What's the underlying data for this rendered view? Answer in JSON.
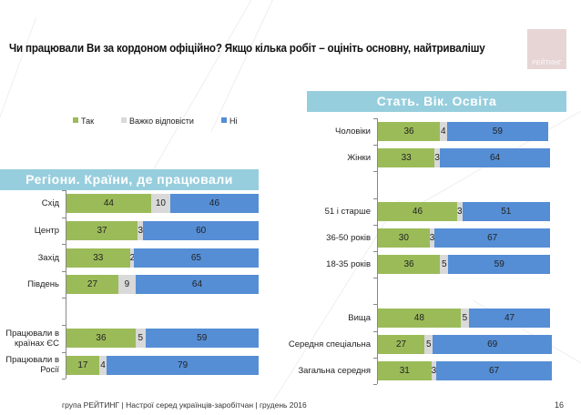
{
  "title": "Чи працювали Ви за кордоном офіційно? Якщо кілька робіт – оцініть основну, найтривалішу",
  "logo_text": "РЕЙТИНГ",
  "colors": {
    "yes": "#9bbb59",
    "hard": "#d9d9d9",
    "no": "#558ed5",
    "banner": "#97cedd"
  },
  "legend": [
    {
      "label": "Так",
      "key": "yes"
    },
    {
      "label": "Важко відповісти",
      "key": "hard"
    },
    {
      "label": "Ні",
      "key": "no"
    }
  ],
  "footer": "група РЕЙТИНГ |  Настрої серед українців-заробітчан  |  грудень 2016",
  "page_number": "16",
  "chart_data": [
    {
      "type": "bar",
      "orientation": "horizontal-stacked-100",
      "title": "Регіони. Країни, де працювали",
      "series_names": [
        "Так",
        "Важко відповісти",
        "Ні"
      ],
      "categories": [
        "Схід",
        "Центр",
        "Захід",
        "Південь",
        "",
        "Працювали в країнах ЄС",
        "Працювали в Росії"
      ],
      "series": [
        {
          "name": "Так",
          "values": [
            44,
            37,
            33,
            27,
            null,
            36,
            17
          ]
        },
        {
          "name": "Важко відповісти",
          "values": [
            10,
            3,
            2,
            9,
            null,
            5,
            4
          ]
        },
        {
          "name": "Ні",
          "values": [
            46,
            60,
            65,
            64,
            null,
            59,
            79
          ]
        }
      ],
      "xlim": [
        0,
        100
      ],
      "legend": "top"
    },
    {
      "type": "bar",
      "orientation": "horizontal-stacked-100",
      "title": "Стать. Вік. Освіта",
      "series_names": [
        "Так",
        "Важко відповісти",
        "Ні"
      ],
      "categories": [
        "Чоловіки",
        "Жінки",
        "",
        "51 і старше",
        "36-50 років",
        "18-35 років",
        "",
        "Вища",
        "Середня спеціальна",
        "Загальна середня"
      ],
      "series": [
        {
          "name": "Так",
          "values": [
            36,
            33,
            null,
            46,
            30,
            36,
            null,
            48,
            27,
            31
          ]
        },
        {
          "name": "Важко відповісти",
          "values": [
            4,
            3,
            null,
            3,
            3,
            5,
            null,
            5,
            5,
            3
          ]
        },
        {
          "name": "Ні",
          "values": [
            59,
            64,
            null,
            51,
            67,
            59,
            null,
            47,
            69,
            67
          ]
        }
      ],
      "xlim": [
        0,
        100
      ]
    }
  ]
}
